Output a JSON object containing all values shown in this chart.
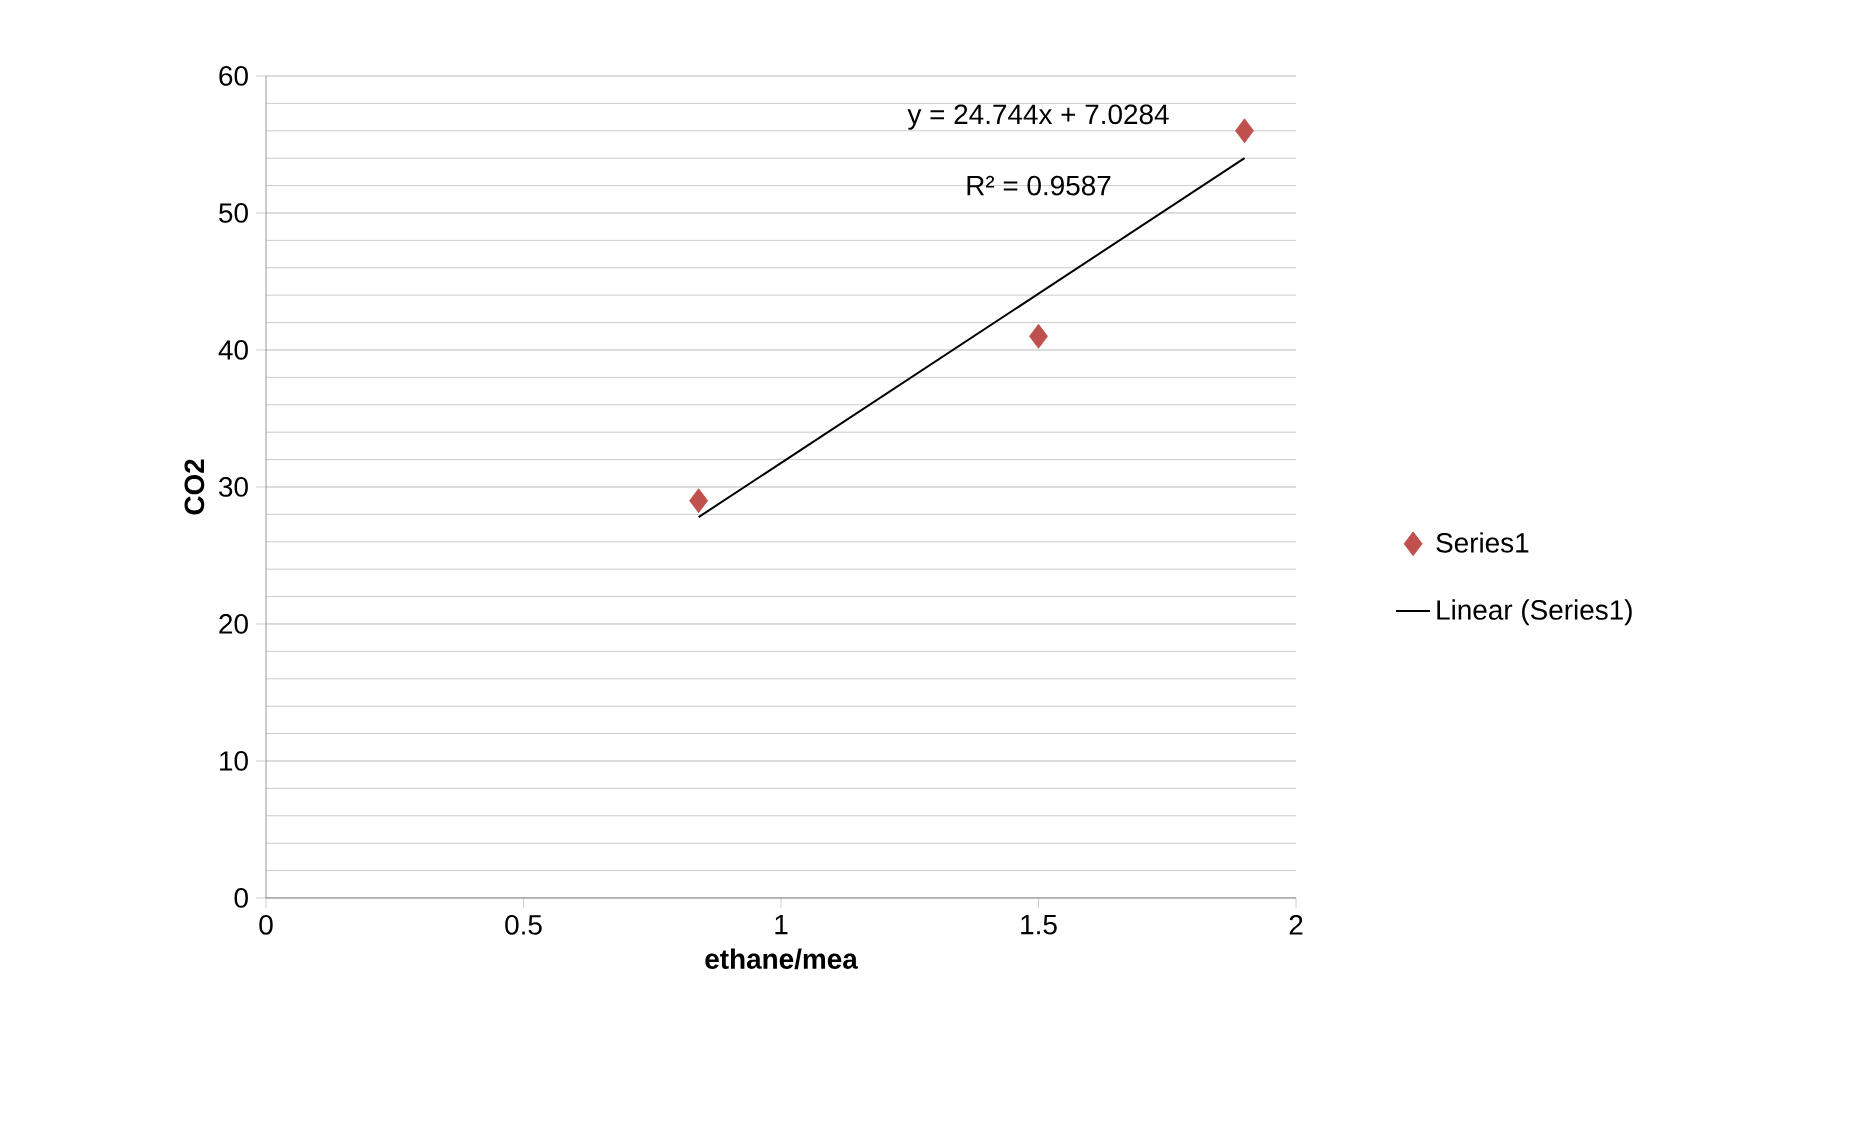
{
  "chart_data": {
    "type": "scatter",
    "xlabel": "ethane/mea",
    "ylabel": "CO2",
    "xlim": [
      0,
      2
    ],
    "ylim": [
      0,
      60
    ],
    "xticks": [
      0,
      0.5,
      1,
      1.5,
      2
    ],
    "yticks": [
      0,
      10,
      20,
      30,
      40,
      50,
      60
    ],
    "grid": "y",
    "legend": "right",
    "marker": "diamond",
    "series": [
      {
        "name": "Series1",
        "color": "#c0504d",
        "x": [
          0.84,
          1.5,
          1.9
        ],
        "values": [
          29,
          41,
          56
        ]
      },
      {
        "name": "Linear (Series1)",
        "type": "line",
        "marker": "none",
        "color": "#000000",
        "x": [
          0.84,
          1.9
        ],
        "values": [
          27.8,
          54.0
        ]
      }
    ],
    "annotations": [
      "y = 24.744x + 7.0284",
      "R² = 0.9587"
    ]
  }
}
